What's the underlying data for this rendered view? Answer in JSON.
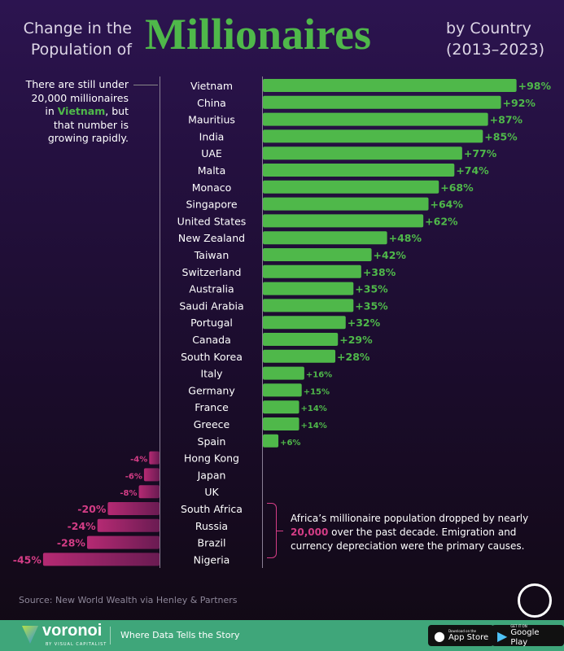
{
  "title": {
    "left_line1": "Change in the",
    "left_line2": "Population of",
    "main": "Millionaires",
    "right_line1": "by Country",
    "right_line2": "(2013–2023)"
  },
  "annotations": {
    "vietnam": {
      "pre": "There are still under 20,000 millionaires in ",
      "highlight": "Vietnam",
      "post": ", but that number is growing rapidly."
    },
    "africa": {
      "pre": "Africa’s millionaire population dropped by nearly ",
      "highlight": "20,000",
      "post": " over the past decade. Emigration and currency depreciation were the primary causes."
    }
  },
  "colors": {
    "positive": "#4fb84a",
    "negative": "#c2307a",
    "highlight_negative": "#d43d86",
    "footer": "#3fa67a"
  },
  "chart_data": {
    "type": "bar",
    "orientation": "horizontal",
    "unit": "%",
    "categories": [
      "Vietnam",
      "China",
      "Mauritius",
      "India",
      "UAE",
      "Malta",
      "Monaco",
      "Singapore",
      "United States",
      "New Zealand",
      "Taiwan",
      "Switzerland",
      "Australia",
      "Saudi Arabia",
      "Portugal",
      "Canada",
      "South Korea",
      "Italy",
      "Germany",
      "France",
      "Greece",
      "Spain",
      "Hong Kong",
      "Japan",
      "UK",
      "South Africa",
      "Russia",
      "Brazil",
      "Nigeria"
    ],
    "values": [
      98,
      92,
      87,
      85,
      77,
      74,
      68,
      64,
      62,
      48,
      42,
      38,
      35,
      35,
      32,
      29,
      28,
      16,
      15,
      14,
      14,
      6,
      -4,
      -6,
      -8,
      -20,
      -24,
      -28,
      -45
    ],
    "labels": [
      "+98%",
      "+92%",
      "+87%",
      "+85%",
      "+77%",
      "+74%",
      "+68%",
      "+64%",
      "+62%",
      "+48%",
      "+42%",
      "+38%",
      "+35%",
      "+35%",
      "+32%",
      "+29%",
      "+28%",
      "+16%",
      "+15%",
      "+14%",
      "+14%",
      "+6%",
      "-4%",
      "-6%",
      "-8%",
      "-20%",
      "-24%",
      "-28%",
      "-45%"
    ],
    "grid": false
  },
  "source": "Source: New World Wealth via Henley & Partners",
  "footer": {
    "brand": "voronoi",
    "brand_sub": "BY VISUAL CAPITALIST",
    "tagline": "Where Data Tells the Story",
    "app_store_small": "Download on the",
    "app_store": "App Store",
    "google_play_small": "GET IT ON",
    "google_play": "Google Play"
  }
}
